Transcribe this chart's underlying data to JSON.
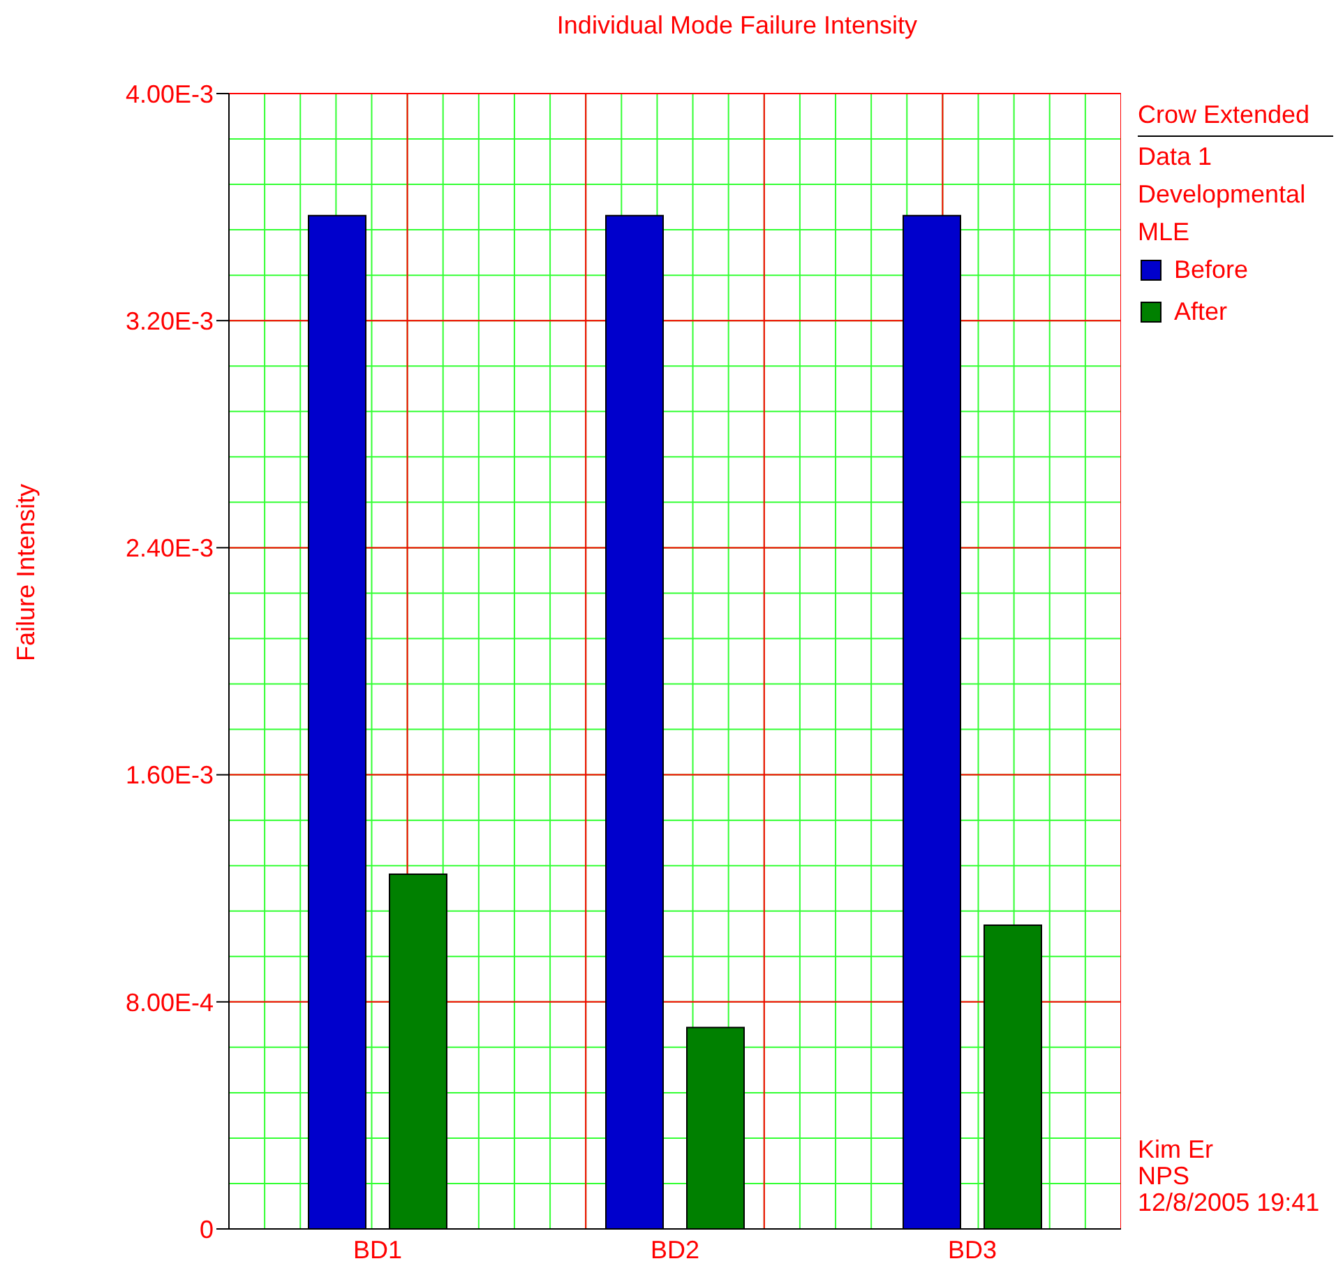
{
  "chart_data": {
    "type": "bar",
    "title": "Individual Mode Failure Intensity",
    "ylabel": "Failure Intensity",
    "legend_title": "Crow Extended",
    "categories": [
      "BD1",
      "BD2",
      "BD3"
    ],
    "series": [
      {
        "name": "Before",
        "color": "#0000cc",
        "values": [
          0.00357,
          0.00357,
          0.00357
        ]
      },
      {
        "name": "After",
        "color": "#008000",
        "values": [
          0.00125,
          0.00071,
          0.00107
        ]
      }
    ],
    "ylim": [
      0,
      0.004
    ],
    "yticks": [
      {
        "value": 0,
        "label": "0"
      },
      {
        "value": 0.0008,
        "label": "8.00E-4"
      },
      {
        "value": 0.0016,
        "label": "1.60E-3"
      },
      {
        "value": 0.0024,
        "label": "2.40E-3"
      },
      {
        "value": 0.0032,
        "label": "3.20E-3"
      },
      {
        "value": 0.004,
        "label": "4.00E-3"
      }
    ],
    "grid": true,
    "legend": "right",
    "annotations": [
      "Data 1",
      "Developmental",
      "MLE",
      "Kim Er",
      "NPS",
      "12/8/2005 19:41"
    ]
  }
}
